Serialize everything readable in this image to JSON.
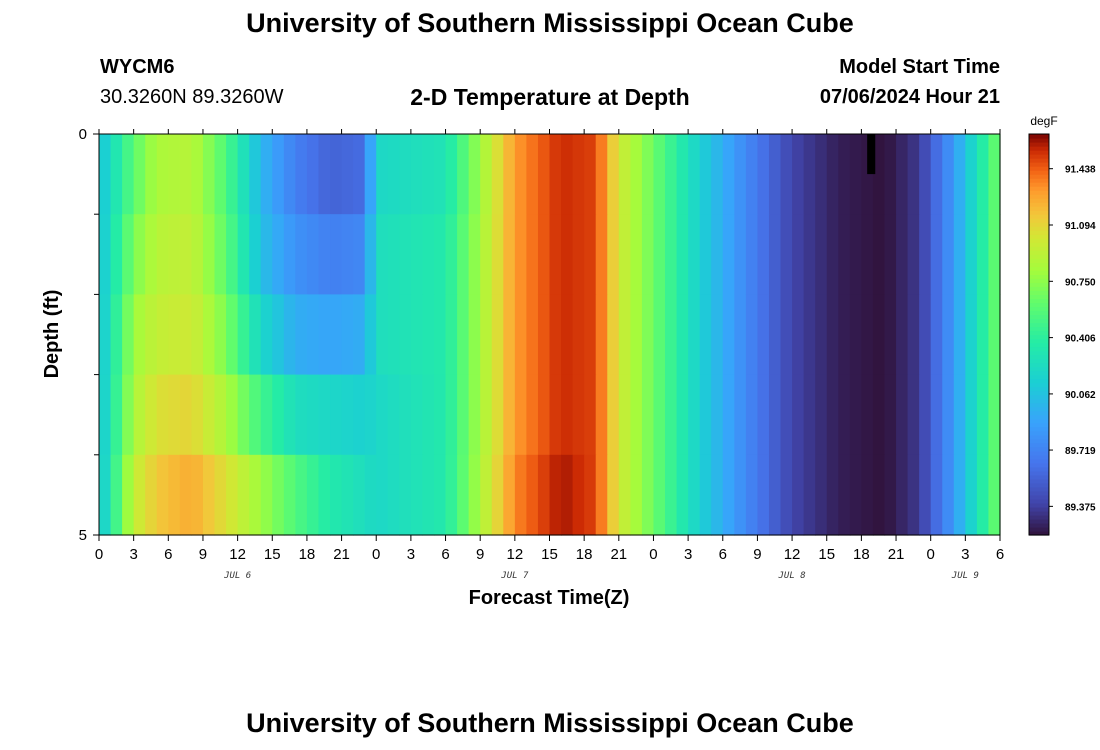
{
  "header": {
    "title": "University of Southern Mississippi Ocean Cube",
    "station_id": "WYCM6",
    "station_coords": "30.3260N  89.3260W",
    "subtitle": "2-D Temperature at Depth",
    "model_start_label": "Model Start Time",
    "model_start_value": "07/06/2024 Hour 21"
  },
  "footer": {
    "title": "University of Southern Mississippi Ocean Cube"
  },
  "chart_data": {
    "type": "heatmap",
    "title": "2-D Temperature at Depth",
    "xlabel": "Forecast Time(Z)",
    "ylabel": "Depth (ft)",
    "x_unit": "hours since 2024-07-06 00Z",
    "x_range": [
      0,
      78
    ],
    "x_tick_step_hours": 3,
    "x_tick_labels": [
      "0",
      "3",
      "6",
      "9",
      "12",
      "15",
      "18",
      "21",
      "0",
      "3",
      "6",
      "9",
      "12",
      "15",
      "18",
      "21",
      "0",
      "3",
      "6",
      "9",
      "12",
      "15",
      "18",
      "21",
      "0",
      "3",
      "6"
    ],
    "day_labels": [
      {
        "hour": 12,
        "text": "JUL 6"
      },
      {
        "hour": 36,
        "text": "JUL 7"
      },
      {
        "hour": 60,
        "text": "JUL 8"
      },
      {
        "hour": 75,
        "text": "JUL 9"
      }
    ],
    "y_range": [
      0,
      5
    ],
    "y_tick_labels": [
      {
        "depth": 0,
        "text": "0"
      },
      {
        "depth": 5,
        "text": "5"
      }
    ],
    "y_minor_ticks": [
      1,
      2,
      3,
      4
    ],
    "depth_layers": [
      0,
      1,
      2,
      3,
      4,
      5
    ],
    "colorbar": {
      "unit": "degF",
      "min": 89.2,
      "max": 91.65,
      "tick_values": [
        91.438,
        91.094,
        90.75,
        90.406,
        90.062,
        89.719,
        89.375
      ],
      "tick_labels": [
        "91.438",
        "91.094",
        "90.750",
        "90.406",
        "90.062",
        "89.719",
        "89.375"
      ]
    },
    "series": [
      {
        "name": "depth 0-1 ft",
        "temps_by_hour": [
          {
            "hour": 0,
            "value": 90.05
          },
          {
            "hour": 3,
            "value": 90.6
          },
          {
            "hour": 5,
            "value": 90.85
          },
          {
            "hour": 8,
            "value": 90.9
          },
          {
            "hour": 11,
            "value": 90.55
          },
          {
            "hour": 14,
            "value": 90.0
          },
          {
            "hour": 17,
            "value": 89.7
          },
          {
            "hour": 20,
            "value": 89.55
          },
          {
            "hour": 23,
            "value": 89.6
          },
          {
            "hour": 24,
            "value": 90.2
          },
          {
            "hour": 30,
            "value": 90.3
          },
          {
            "hour": 36,
            "value": 91.3
          },
          {
            "hour": 40,
            "value": 91.55
          },
          {
            "hour": 43,
            "value": 91.5
          },
          {
            "hour": 45,
            "value": 91.0
          },
          {
            "hour": 48,
            "value": 90.65
          },
          {
            "hour": 52,
            "value": 90.15
          },
          {
            "hour": 56,
            "value": 89.75
          },
          {
            "hour": 60,
            "value": 89.4
          },
          {
            "hour": 64,
            "value": 89.25
          },
          {
            "hour": 68,
            "value": 89.2
          },
          {
            "hour": 71,
            "value": 89.35
          },
          {
            "hour": 74,
            "value": 89.85
          },
          {
            "hour": 78,
            "value": 90.7
          }
        ]
      },
      {
        "name": "depth 1-2 ft",
        "temps_by_hour": [
          {
            "hour": 0,
            "value": 90.05
          },
          {
            "hour": 3,
            "value": 90.7
          },
          {
            "hour": 5,
            "value": 90.9
          },
          {
            "hour": 8,
            "value": 90.95
          },
          {
            "hour": 11,
            "value": 90.6
          },
          {
            "hour": 14,
            "value": 90.05
          },
          {
            "hour": 17,
            "value": 89.8
          },
          {
            "hour": 20,
            "value": 89.7
          },
          {
            "hour": 23,
            "value": 89.75
          },
          {
            "hour": 24,
            "value": 90.25
          },
          {
            "hour": 30,
            "value": 90.35
          },
          {
            "hour": 36,
            "value": 91.3
          },
          {
            "hour": 40,
            "value": 91.55
          },
          {
            "hour": 43,
            "value": 91.5
          },
          {
            "hour": 45,
            "value": 91.0
          },
          {
            "hour": 48,
            "value": 90.65
          },
          {
            "hour": 52,
            "value": 90.15
          },
          {
            "hour": 56,
            "value": 89.75
          },
          {
            "hour": 60,
            "value": 89.4
          },
          {
            "hour": 64,
            "value": 89.25
          },
          {
            "hour": 68,
            "value": 89.2
          },
          {
            "hour": 71,
            "value": 89.35
          },
          {
            "hour": 74,
            "value": 89.85
          },
          {
            "hour": 78,
            "value": 90.7
          }
        ]
      },
      {
        "name": "depth 2-3 ft",
        "temps_by_hour": [
          {
            "hour": 0,
            "value": 90.05
          },
          {
            "hour": 3,
            "value": 90.8
          },
          {
            "hour": 5,
            "value": 90.95
          },
          {
            "hour": 8,
            "value": 91.0
          },
          {
            "hour": 11,
            "value": 90.7
          },
          {
            "hour": 14,
            "value": 90.2
          },
          {
            "hour": 17,
            "value": 89.95
          },
          {
            "hour": 20,
            "value": 89.9
          },
          {
            "hour": 23,
            "value": 89.95
          },
          {
            "hour": 24,
            "value": 90.25
          },
          {
            "hour": 30,
            "value": 90.35
          },
          {
            "hour": 36,
            "value": 91.3
          },
          {
            "hour": 40,
            "value": 91.55
          },
          {
            "hour": 43,
            "value": 91.5
          },
          {
            "hour": 45,
            "value": 91.0
          },
          {
            "hour": 48,
            "value": 90.65
          },
          {
            "hour": 52,
            "value": 90.15
          },
          {
            "hour": 56,
            "value": 89.75
          },
          {
            "hour": 60,
            "value": 89.4
          },
          {
            "hour": 64,
            "value": 89.25
          },
          {
            "hour": 68,
            "value": 89.2
          },
          {
            "hour": 71,
            "value": 89.35
          },
          {
            "hour": 74,
            "value": 89.85
          },
          {
            "hour": 78,
            "value": 90.7
          }
        ]
      },
      {
        "name": "depth 3-4 ft",
        "temps_by_hour": [
          {
            "hour": 0,
            "value": 90.05
          },
          {
            "hour": 3,
            "value": 90.85
          },
          {
            "hour": 5,
            "value": 91.05
          },
          {
            "hour": 8,
            "value": 91.1
          },
          {
            "hour": 11,
            "value": 90.85
          },
          {
            "hour": 14,
            "value": 90.5
          },
          {
            "hour": 17,
            "value": 90.25
          },
          {
            "hour": 20,
            "value": 90.2
          },
          {
            "hour": 23,
            "value": 90.15
          },
          {
            "hour": 24,
            "value": 90.2
          },
          {
            "hour": 30,
            "value": 90.35
          },
          {
            "hour": 36,
            "value": 91.3
          },
          {
            "hour": 40,
            "value": 91.55
          },
          {
            "hour": 43,
            "value": 91.5
          },
          {
            "hour": 45,
            "value": 91.0
          },
          {
            "hour": 48,
            "value": 90.65
          },
          {
            "hour": 52,
            "value": 90.15
          },
          {
            "hour": 56,
            "value": 89.75
          },
          {
            "hour": 60,
            "value": 89.4
          },
          {
            "hour": 64,
            "value": 89.25
          },
          {
            "hour": 68,
            "value": 89.2
          },
          {
            "hour": 71,
            "value": 89.35
          },
          {
            "hour": 74,
            "value": 89.85
          },
          {
            "hour": 78,
            "value": 90.7
          }
        ]
      },
      {
        "name": "depth 4-5 ft",
        "temps_by_hour": [
          {
            "hour": 0,
            "value": 90.05
          },
          {
            "hour": 3,
            "value": 90.95
          },
          {
            "hour": 5,
            "value": 91.15
          },
          {
            "hour": 8,
            "value": 91.25
          },
          {
            "hour": 11,
            "value": 91.05
          },
          {
            "hour": 14,
            "value": 90.8
          },
          {
            "hour": 17,
            "value": 90.55
          },
          {
            "hour": 20,
            "value": 90.35
          },
          {
            "hour": 23,
            "value": 90.25
          },
          {
            "hour": 24,
            "value": 90.2
          },
          {
            "hour": 30,
            "value": 90.35
          },
          {
            "hour": 36,
            "value": 91.35
          },
          {
            "hour": 40,
            "value": 91.6
          },
          {
            "hour": 43,
            "value": 91.5
          },
          {
            "hour": 45,
            "value": 91.0
          },
          {
            "hour": 48,
            "value": 90.65
          },
          {
            "hour": 52,
            "value": 90.15
          },
          {
            "hour": 56,
            "value": 89.75
          },
          {
            "hour": 60,
            "value": 89.4
          },
          {
            "hour": 64,
            "value": 89.25
          },
          {
            "hour": 68,
            "value": 89.2
          },
          {
            "hour": 71,
            "value": 89.35
          },
          {
            "hour": 74,
            "value": 89.85
          },
          {
            "hour": 78,
            "value": 90.7
          }
        ]
      }
    ],
    "missing_data": [
      {
        "hour_start": 66.5,
        "hour_end": 67.2,
        "depth_start": 0,
        "depth_end": 0.5
      }
    ]
  }
}
